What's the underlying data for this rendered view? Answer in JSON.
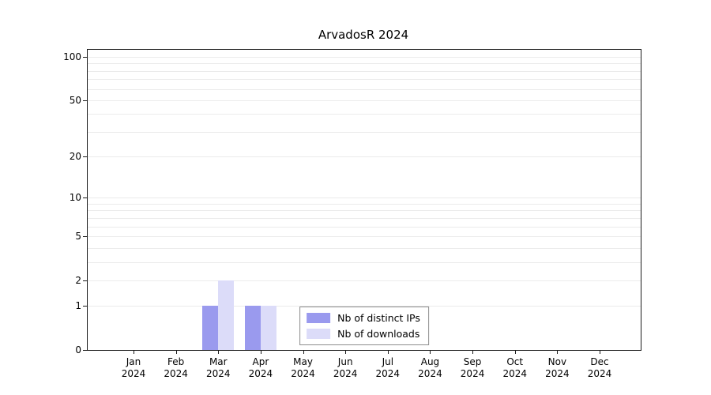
{
  "chart_data": {
    "type": "bar",
    "title": "ArvadosR 2024",
    "categories": [
      "Jan",
      "Feb",
      "Mar",
      "Apr",
      "May",
      "Jun",
      "Jul",
      "Aug",
      "Sep",
      "Oct",
      "Nov",
      "Dec"
    ],
    "year_label": "2024",
    "series": [
      {
        "name": "Nb of distinct IPs",
        "color": "#9a9aee",
        "values": [
          0,
          0,
          1,
          1,
          0,
          0,
          0,
          0,
          0,
          0,
          0,
          0
        ]
      },
      {
        "name": "Nb of downloads",
        "color": "#dcdcf9",
        "values": [
          0,
          0,
          2,
          1,
          0,
          0,
          0,
          0,
          0,
          0,
          0,
          0
        ]
      }
    ],
    "yticks": [
      0,
      1,
      2,
      5,
      10,
      20,
      50,
      100
    ],
    "yscale": "log10(1+x)",
    "ylim": [
      0,
      112
    ],
    "grid": "minor-horizontal",
    "legend_position": "bottom-center"
  }
}
